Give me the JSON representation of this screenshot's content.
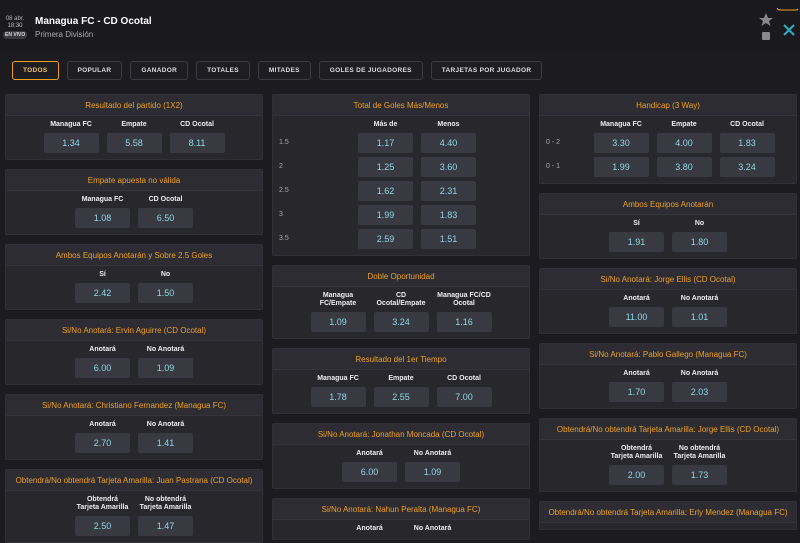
{
  "header": {
    "date": "08 abr.",
    "time": "18:30",
    "status": "EN VIVO",
    "match": "Managua FC - CD Ocotal",
    "league": "Primera División"
  },
  "tabs": [
    "TODOS",
    "POPULAR",
    "GANADOR",
    "TOTALES",
    "MITADES",
    "GOLES DE JUGADORES",
    "TARJETAS POR JUGADOR"
  ],
  "columns": [
    {
      "markets": [
        {
          "title": "Resultado del partido (1X2)",
          "headers": [
            "Managua FC",
            "Empate",
            "CD Ocotal"
          ],
          "rows": [
            {
              "odds": [
                "1.34",
                "5.58",
                "8.11"
              ]
            }
          ]
        },
        {
          "title": "Empate apuesta no válida",
          "headers": [
            "Managua FC",
            "CD Ocotal"
          ],
          "rows": [
            {
              "odds": [
                "1.08",
                "6.50"
              ]
            }
          ]
        },
        {
          "title": "Ambos Equipos Anotarán y Sobre 2.5 Goles",
          "headers": [
            "Sí",
            "No"
          ],
          "rows": [
            {
              "odds": [
                "2.42",
                "1.50"
              ]
            }
          ]
        },
        {
          "title": "Si/No Anotará: Ervin Aguirre (CD Ocotal)",
          "headers": [
            "Anotará",
            "No Anotará"
          ],
          "rows": [
            {
              "odds": [
                "6.00",
                "1.09"
              ]
            }
          ]
        },
        {
          "title": "Si/No Anotará: Christiano Fernandez (Managua FC)",
          "headers": [
            "Anotará",
            "No Anotará"
          ],
          "rows": [
            {
              "odds": [
                "2.70",
                "1.41"
              ]
            }
          ]
        },
        {
          "title": "Obtendrá/No obtendrá Tarjeta Amarilla: Juan Pastrana (CD Ocotal)",
          "headers": [
            "Obtendrá Tarjeta Amarilla",
            "No obtendrá Tarjeta Amarilla"
          ],
          "rows": [
            {
              "odds": [
                "2.50",
                "1.47"
              ]
            }
          ]
        }
      ]
    },
    {
      "markets": [
        {
          "title": "Total de Goles Más/Menos",
          "headers": [
            "Más de",
            "Menos"
          ],
          "rows": [
            {
              "label": "1.5",
              "odds": [
                "1.17",
                "4.40"
              ]
            },
            {
              "label": "2",
              "odds": [
                "1.25",
                "3.60"
              ]
            },
            {
              "label": "2.5",
              "odds": [
                "1.62",
                "2.31"
              ]
            },
            {
              "label": "3",
              "odds": [
                "1.99",
                "1.83"
              ]
            },
            {
              "label": "3.5",
              "odds": [
                "2.59",
                "1.51"
              ]
            }
          ]
        },
        {
          "title": "Doble Oportunidad",
          "headers": [
            "Managua FC/Empate",
            "CD Ocotal/Empate",
            "Managua FC/CD Ocotal"
          ],
          "rows": [
            {
              "odds": [
                "1.09",
                "3.24",
                "1.16"
              ]
            }
          ]
        },
        {
          "title": "Resultado del 1er Tiempo",
          "headers": [
            "Managua FC",
            "Empate",
            "CD Ocotal"
          ],
          "rows": [
            {
              "odds": [
                "1.78",
                "2.55",
                "7.00"
              ]
            }
          ]
        },
        {
          "title": "Si/No Anotará: Jonathan Moncada (CD Ocotal)",
          "headers": [
            "Anotará",
            "No Anotará"
          ],
          "rows": [
            {
              "odds": [
                "6.00",
                "1.09"
              ]
            }
          ]
        },
        {
          "title": "Si/No Anotará: Nahun Peralta (Managua FC)",
          "headers": [
            "Anotará",
            "No Anotará"
          ],
          "rows": []
        }
      ]
    },
    {
      "markets": [
        {
          "title": "Handicap (3 Way)",
          "headers": [
            "Managua FC",
            "Empate",
            "CD Ocotal"
          ],
          "rows": [
            {
              "label": "0 - 2",
              "odds": [
                "3.30",
                "4.00",
                "1.83"
              ]
            },
            {
              "label": "0 - 1",
              "odds": [
                "1.99",
                "3.80",
                "3.24"
              ]
            }
          ]
        },
        {
          "title": "Ambos Equipos Anotarán",
          "headers": [
            "Sí",
            "No"
          ],
          "rows": [
            {
              "odds": [
                "1.91",
                "1.80"
              ]
            }
          ]
        },
        {
          "title": "Si/No Anotará: Jorge Ellis (CD Ocotal)",
          "headers": [
            "Anotará",
            "No Anotará"
          ],
          "rows": [
            {
              "odds": [
                "11.00",
                "1.01"
              ]
            }
          ]
        },
        {
          "title": "Si/No Anotará: Pablo Gallego (Managua FC)",
          "headers": [
            "Anotará",
            "No Anotará"
          ],
          "rows": [
            {
              "odds": [
                "1.70",
                "2.03"
              ]
            }
          ]
        },
        {
          "title": "Obtendrá/No obtendrá Tarjeta Amarilla: Jorge Ellis (CD Ocotal)",
          "headers": [
            "Obtendrá Tarjeta Amarilla",
            "No obtendrá Tarjeta Amarilla"
          ],
          "rows": [
            {
              "odds": [
                "2.00",
                "1.73"
              ]
            }
          ]
        },
        {
          "title": "Obtendrá/No obtendrá Tarjeta Amarilla: Erly Mendez (Managua FC)",
          "headers": [],
          "rows": []
        }
      ]
    }
  ]
}
